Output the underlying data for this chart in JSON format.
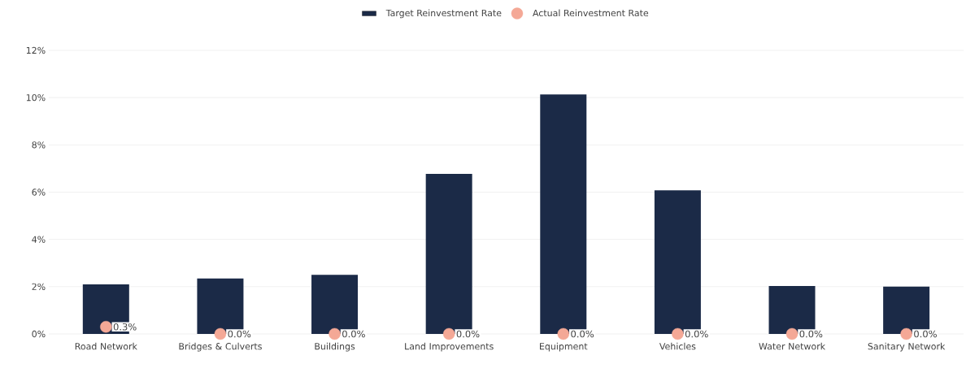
{
  "chart_data": {
    "type": "bar",
    "categories": [
      "Road Network",
      "Bridges & Culverts",
      "Buildings",
      "Land Improvements",
      "Equipment",
      "Vehicles",
      "Water Network",
      "Sanitary Network"
    ],
    "series": [
      {
        "name": "Target Reinvestment Rate",
        "color": "#1b2a47",
        "values": [
          2.1,
          2.35,
          2.5,
          6.77,
          10.13,
          6.08,
          2.03,
          2.0
        ]
      },
      {
        "name": "Actual Reinvestment Rate",
        "type": "scatter",
        "color": "#f4a896",
        "values": [
          0.3,
          0.0,
          0.0,
          0.0,
          0.0,
          0.0,
          0.0,
          0.0
        ],
        "value_labels": [
          "0.3%",
          "0.0%",
          "0.0%",
          "0.0%",
          "0.0%",
          "0.0%",
          "0.0%",
          "0.0%"
        ]
      }
    ],
    "ylim": [
      0,
      12
    ],
    "yticks": [
      {
        "value": 0,
        "label": "0%"
      },
      {
        "value": 2,
        "label": "2%"
      },
      {
        "value": 4,
        "label": "4%"
      },
      {
        "value": 6,
        "label": "6%"
      },
      {
        "value": 8,
        "label": "8%"
      },
      {
        "value": 10,
        "label": "10%"
      },
      {
        "value": 12,
        "label": "12%"
      }
    ],
    "grid": "y",
    "marker": "circle",
    "legend": "top"
  }
}
